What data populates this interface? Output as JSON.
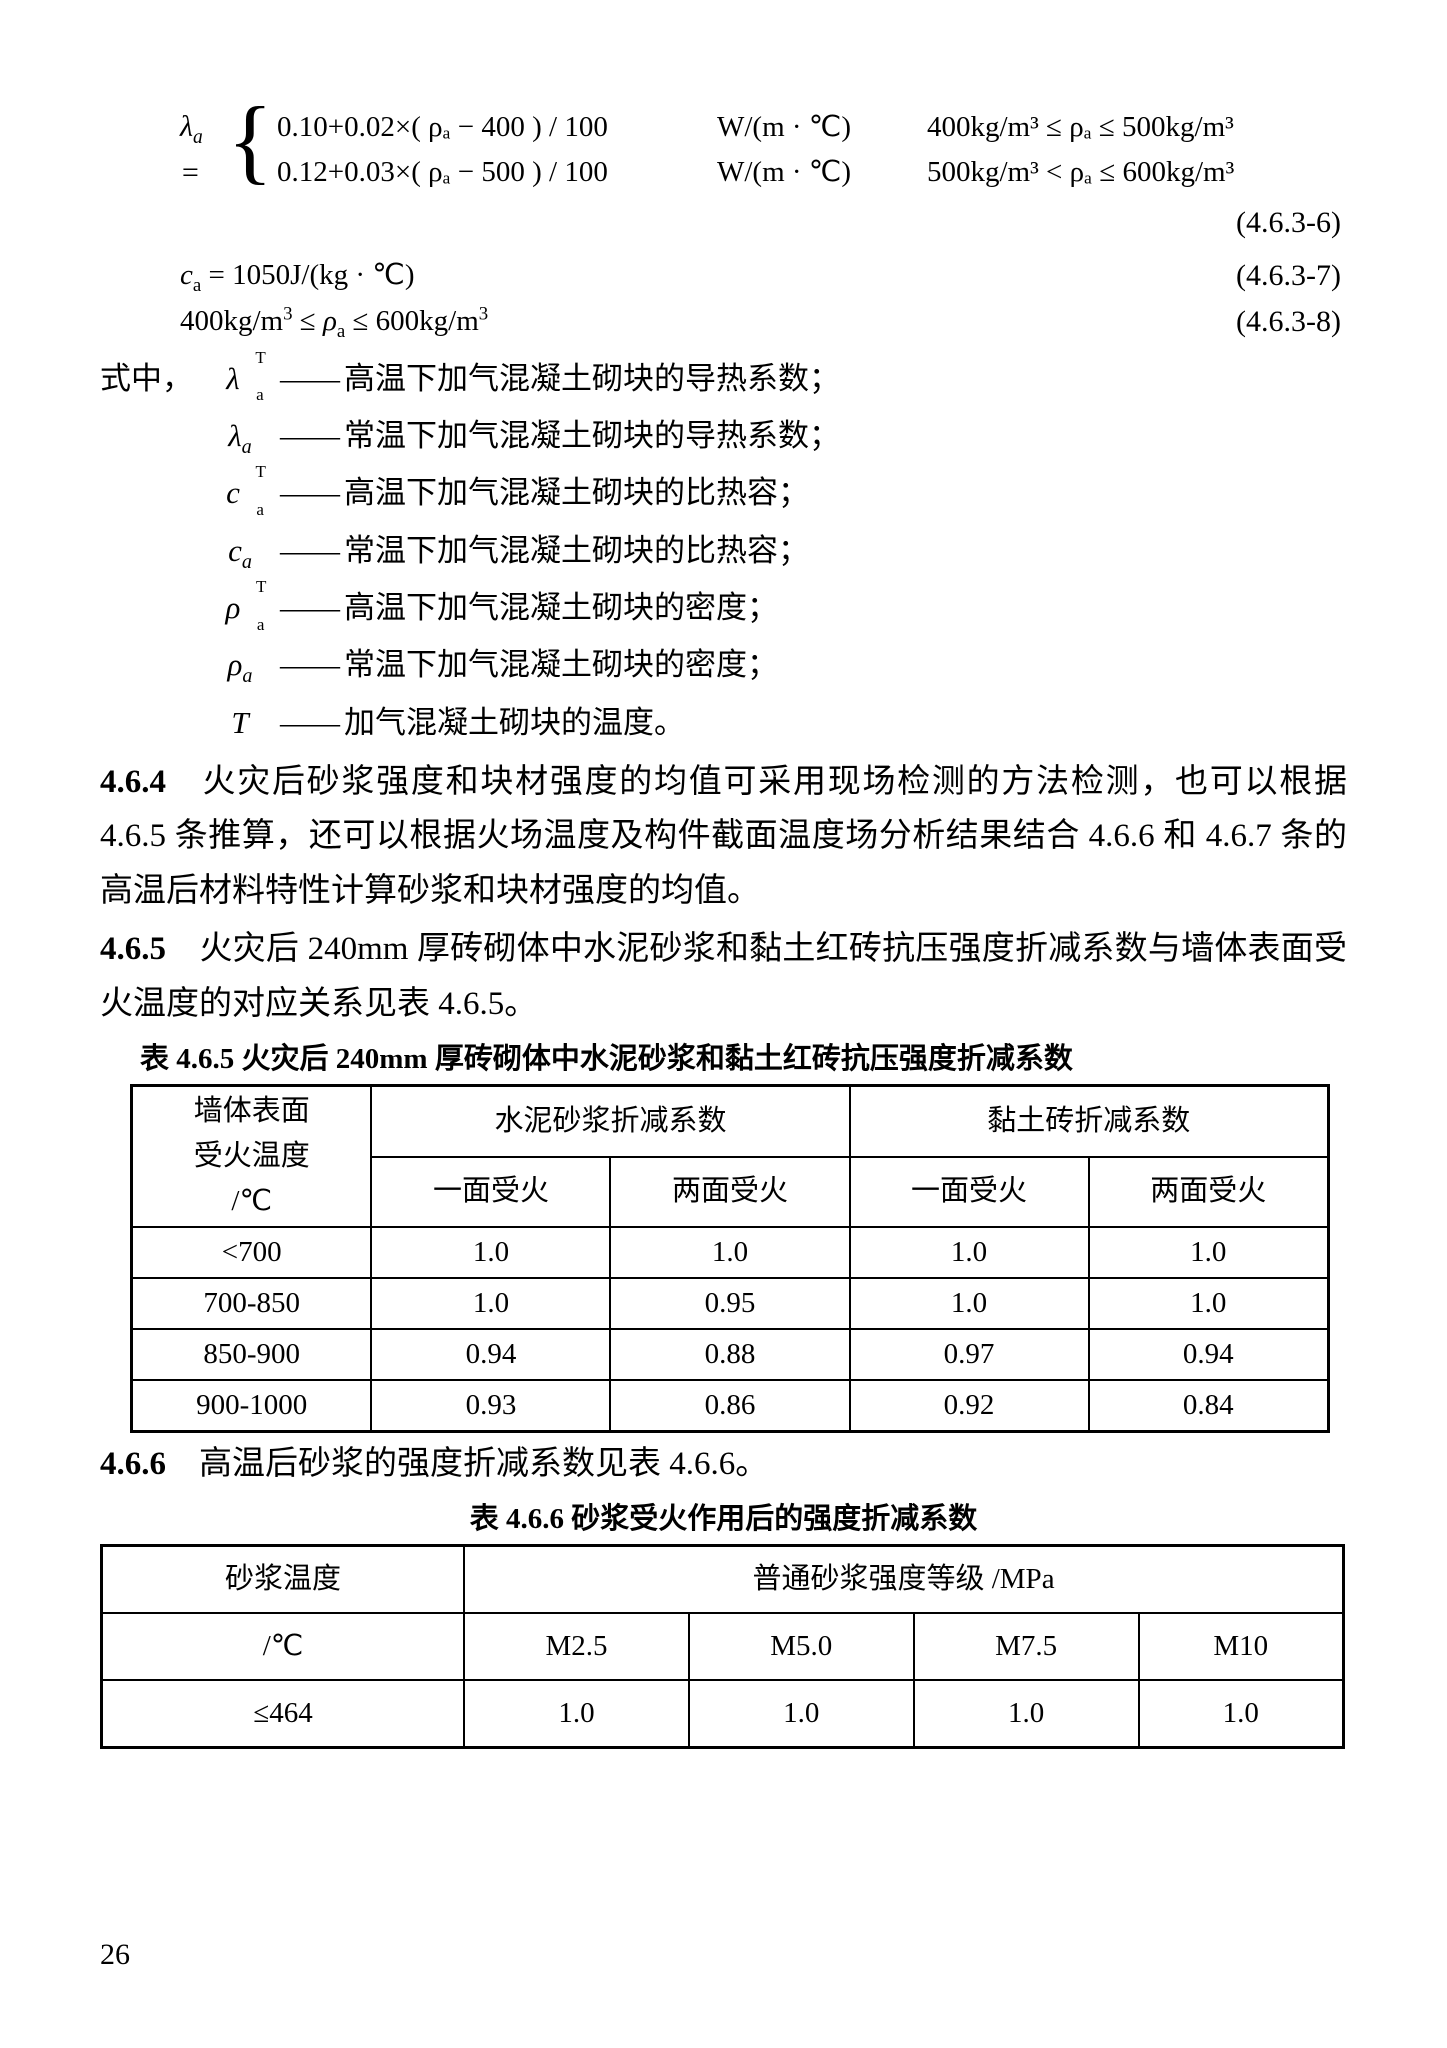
{
  "eq_lambda": {
    "lhs": "λ",
    "lhs_sub": "a",
    "cases": [
      {
        "expr": "0.10+0.02×( ρₐ − 400 ) / 100",
        "unit": "W/(m · ℃)",
        "cond": "400kg/m³ ≤ ρₐ ≤ 500kg/m³"
      },
      {
        "expr": "0.12+0.03×( ρₐ − 500 ) / 100",
        "unit": "W/(m · ℃)",
        "cond": "500kg/m³ < ρₐ ≤ 600kg/m³"
      }
    ],
    "tag": "(4.6.3-6)"
  },
  "eq_c": {
    "text": "cₐ = 1050J/(kg · ℃)",
    "tag": "(4.6.3-7)"
  },
  "eq_rho": {
    "text": "400kg/m³ ≤ ρₐ ≤ 600kg/m³",
    "tag": "(4.6.3-8)"
  },
  "where_label": "式中，",
  "dash": "——",
  "defs": [
    {
      "sym_html": "<span class='stack stack-pad'><span>λ</span><span class='s-sup'>T</span><span class='s-sub'>a</span></span>",
      "text": "高温下加气混凝土砌块的导热系数；"
    },
    {
      "sym_html": "<span>λ</span><sub>a</sub>",
      "text": "常温下加气混凝土砌块的导热系数；"
    },
    {
      "sym_html": "<span class='stack stack-pad'><span>c</span><span class='s-sup'>T</span><span class='s-sub'>a</span></span>",
      "text": "高温下加气混凝土砌块的比热容；"
    },
    {
      "sym_html": "<span>c</span><sub>a</sub>",
      "text": "常温下加气混凝土砌块的比热容；"
    },
    {
      "sym_html": "<span class='stack stack-pad'><span>ρ</span><span class='s-sup'>T</span><span class='s-sub'>a</span></span>",
      "text": "高温下加气混凝土砌块的密度；"
    },
    {
      "sym_html": "<span>ρ</span><sub>a</sub>",
      "text": "常温下加气混凝土砌块的密度；"
    },
    {
      "sym_html": "<span>T</span>",
      "text": "加气混凝土砌块的温度。"
    }
  ],
  "p464": {
    "num": "4.6.4",
    "text": "　火灾后砂浆强度和块材强度的均值可采用现场检测的方法检测，也可以根据 4.6.5 条推算，还可以根据火场温度及构件截面温度场分析结果结合 4.6.6 和 4.6.7 条的高温后材料特性计算砂浆和块材强度的均值。"
  },
  "p465": {
    "num": "4.6.5",
    "text": "　火灾后 240mm 厚砖砌体中水泥砂浆和黏土红砖抗压强度折减系数与墙体表面受火温度的对应关系见表 4.6.5。"
  },
  "t465": {
    "caption": "表 4.6.5  火灾后 240mm 厚砖砌体中水泥砂浆和黏土红砖抗压强度折减系数",
    "head_col1_l1": "墙体表面",
    "head_col1_l2": "受火温度",
    "head_col1_l3": "/℃",
    "head_g1": "水泥砂浆折减系数",
    "head_g2": "黏土砖折减系数",
    "sub1": "一面受火",
    "sub2": "两面受火",
    "rows": [
      [
        "<700",
        "1.0",
        "1.0",
        "1.0",
        "1.0"
      ],
      [
        "700-850",
        "1.0",
        "0.95",
        "1.0",
        "1.0"
      ],
      [
        "850-900",
        "0.94",
        "0.88",
        "0.97",
        "0.94"
      ],
      [
        "900-1000",
        "0.93",
        "0.86",
        "0.92",
        "0.84"
      ]
    ]
  },
  "p466": {
    "num": "4.6.6",
    "text": "　高温后砂浆的强度折减系数见表 4.6.6。"
  },
  "t466": {
    "caption": "表 4.6.6  砂浆受火作用后的强度折减系数",
    "head_col1_l1": "砂浆温度",
    "head_col1_l2": "/℃",
    "head_g1": "普通砂浆强度等级  /MPa",
    "subcols": [
      "M2.5",
      "M5.0",
      "M7.5",
      "M10"
    ],
    "rows": [
      [
        "≤464",
        "1.0",
        "1.0",
        "1.0",
        "1.0"
      ]
    ]
  },
  "page_number": "26"
}
